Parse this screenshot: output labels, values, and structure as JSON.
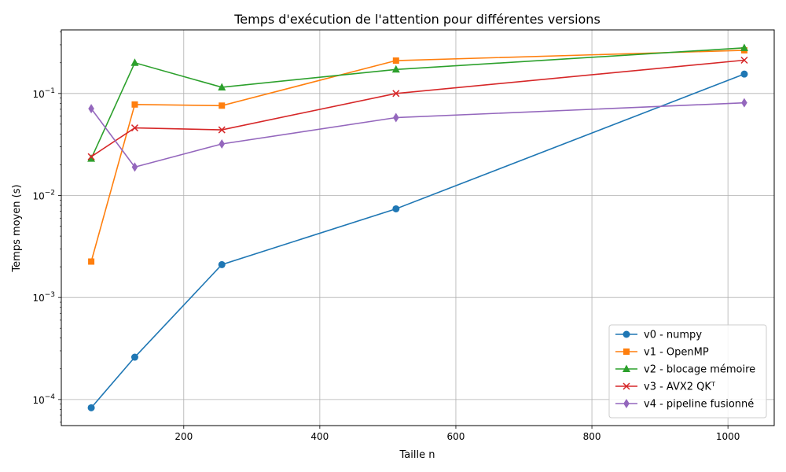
{
  "chart_data": {
    "type": "line",
    "title": "Temps d'exécution de l'attention pour différentes versions",
    "xlabel": "Taille n",
    "ylabel": "Temps moyen (s)",
    "xlim": [
      20,
      1068
    ],
    "ylim": [
      5.55e-05,
      0.42
    ],
    "yscale": "log",
    "grid": true,
    "legend_position": "lower-right",
    "x_ticks": [
      {
        "value": 200,
        "label": "200"
      },
      {
        "value": 400,
        "label": "400"
      },
      {
        "value": 600,
        "label": "600"
      },
      {
        "value": 800,
        "label": "800"
      },
      {
        "value": 1000,
        "label": "1000"
      }
    ],
    "y_ticks": [
      {
        "value": 0.0001,
        "base": "10",
        "exp": "−4"
      },
      {
        "value": 0.001,
        "base": "10",
        "exp": "−3"
      },
      {
        "value": 0.01,
        "base": "10",
        "exp": "−2"
      },
      {
        "value": 0.1,
        "base": "10",
        "exp": "−1"
      }
    ],
    "x": [
      64,
      128,
      256,
      512,
      1024
    ],
    "series": [
      {
        "name": "v0 - numpy",
        "color": "#1f77b4",
        "marker": "circle",
        "values": [
          8.3e-05,
          0.00026,
          0.0021,
          0.0074,
          0.155
        ]
      },
      {
        "name": "v1 - OpenMP",
        "color": "#ff7f0e",
        "marker": "square",
        "values": [
          0.00225,
          0.078,
          0.076,
          0.21,
          0.265
        ]
      },
      {
        "name": "v2 - blocage mémoire",
        "color": "#2ca02c",
        "marker": "triangle",
        "values": [
          0.023,
          0.2,
          0.115,
          0.172,
          0.28
        ]
      },
      {
        "name": "v3 - AVX2 QKᵀ",
        "color": "#d62728",
        "marker": "x",
        "values": [
          0.024,
          0.046,
          0.044,
          0.1,
          0.212
        ]
      },
      {
        "name": "v4 - pipeline fusionné",
        "color": "#9467bd",
        "marker": "diamond",
        "values": [
          0.071,
          0.019,
          0.032,
          0.058,
          0.081
        ]
      }
    ]
  }
}
